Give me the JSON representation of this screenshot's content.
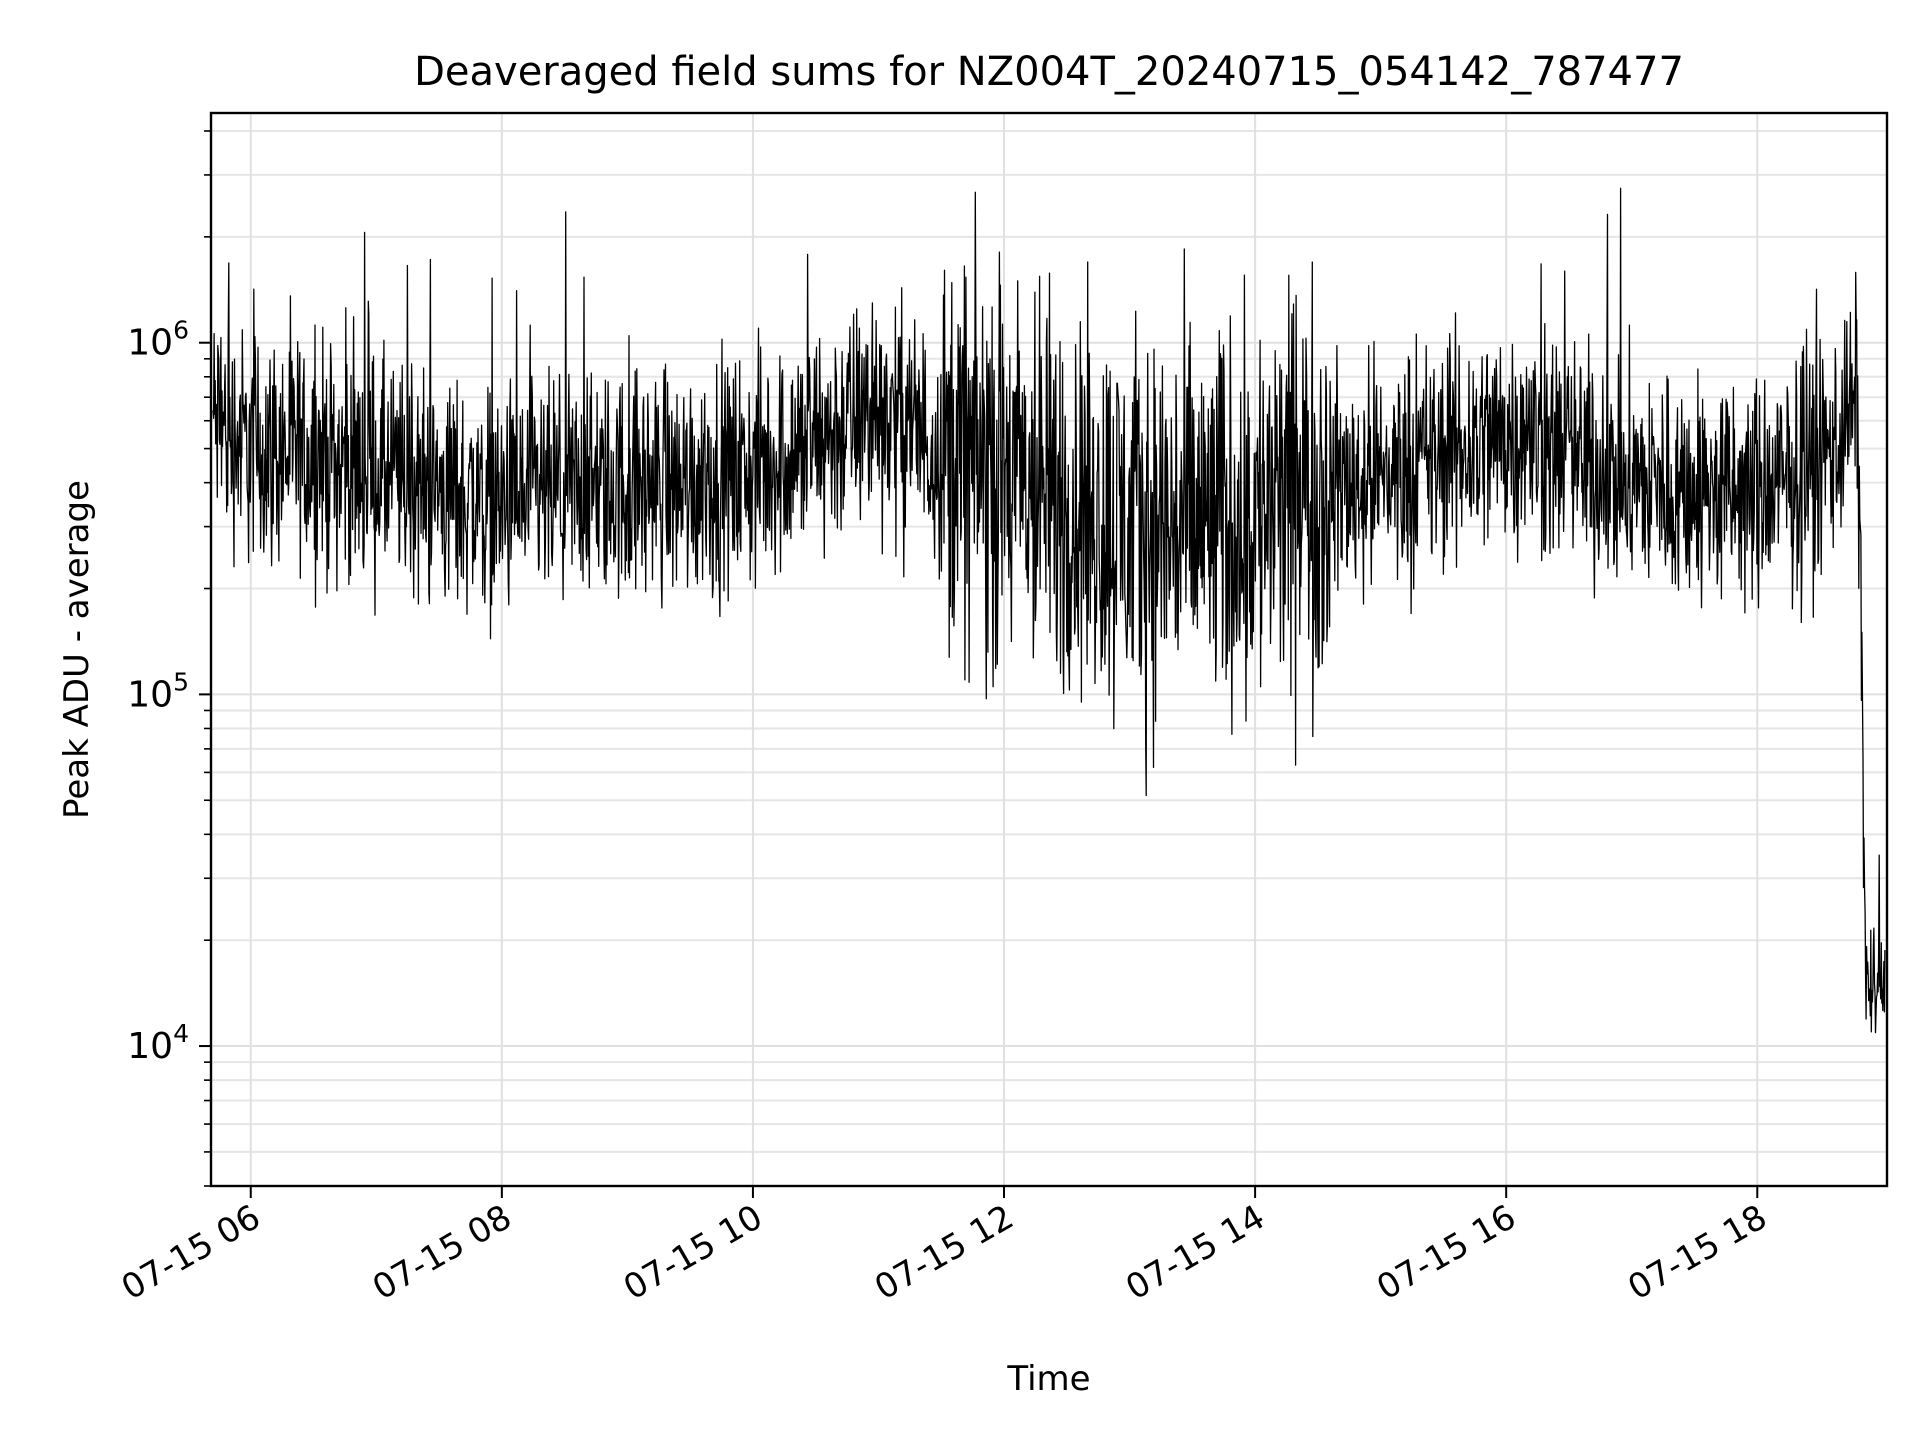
{
  "chart_data": {
    "type": "line",
    "title": "Deaveraged field sums for NZ004T_20240715_054142_787477",
    "xlabel": "Time",
    "ylabel": "Peak ADU - average",
    "yscale": "log",
    "xlim": [
      "2024-07-15T05:41",
      "2024-07-15T19:02"
    ],
    "ylim": [
      4000,
      4500000
    ],
    "x_ticks": [
      {
        "value": "2024-07-15T06:00",
        "label": "07-15 06"
      },
      {
        "value": "2024-07-15T08:00",
        "label": "07-15 08"
      },
      {
        "value": "2024-07-15T10:00",
        "label": "07-15 10"
      },
      {
        "value": "2024-07-15T12:00",
        "label": "07-15 12"
      },
      {
        "value": "2024-07-15T14:00",
        "label": "07-15 14"
      },
      {
        "value": "2024-07-15T16:00",
        "label": "07-15 16"
      },
      {
        "value": "2024-07-15T18:00",
        "label": "07-15 18"
      }
    ],
    "y_ticks": [
      {
        "value": 10000,
        "base": "10",
        "exp": "4"
      },
      {
        "value": 100000,
        "base": "10",
        "exp": "5"
      },
      {
        "value": 1000000,
        "base": "10",
        "exp": "6"
      }
    ],
    "grid": true,
    "line_color": "#000000",
    "series": [
      {
        "values": [
          {
            "x": "2024-07-15T05:42",
            "y": 600000
          },
          {
            "x": "2024-07-15T06:00",
            "y": 500000
          },
          {
            "x": "2024-07-15T06:30",
            "y": 480000
          },
          {
            "x": "2024-07-15T07:00",
            "y": 430000
          },
          {
            "x": "2024-07-15T07:30",
            "y": 380000
          },
          {
            "x": "2024-07-15T08:00",
            "y": 350000
          },
          {
            "x": "2024-07-15T08:30",
            "y": 370000
          },
          {
            "x": "2024-07-15T09:00",
            "y": 390000
          },
          {
            "x": "2024-07-15T09:30",
            "y": 400000
          },
          {
            "x": "2024-07-15T10:00",
            "y": 430000
          },
          {
            "x": "2024-07-15T10:30",
            "y": 520000
          },
          {
            "x": "2024-07-15T11:00",
            "y": 650000
          },
          {
            "x": "2024-07-15T11:30",
            "y": 500000
          },
          {
            "x": "2024-07-15T12:00",
            "y": 420000
          },
          {
            "x": "2024-07-15T12:30",
            "y": 350000
          },
          {
            "x": "2024-07-15T13:00",
            "y": 300000
          },
          {
            "x": "2024-07-15T13:30",
            "y": 300000
          },
          {
            "x": "2024-07-15T14:00",
            "y": 320000
          },
          {
            "x": "2024-07-15T14:30",
            "y": 380000
          },
          {
            "x": "2024-07-15T15:00",
            "y": 420000
          },
          {
            "x": "2024-07-15T15:30",
            "y": 470000
          },
          {
            "x": "2024-07-15T16:00",
            "y": 560000
          },
          {
            "x": "2024-07-15T16:30",
            "y": 480000
          },
          {
            "x": "2024-07-15T17:00",
            "y": 400000
          },
          {
            "x": "2024-07-15T17:30",
            "y": 380000
          },
          {
            "x": "2024-07-15T18:00",
            "y": 360000
          },
          {
            "x": "2024-07-15T18:30",
            "y": 450000
          },
          {
            "x": "2024-07-15T18:48",
            "y": 700000
          },
          {
            "x": "2024-07-15T18:52",
            "y": 15000
          },
          {
            "x": "2024-07-15T19:01",
            "y": 14000
          }
        ]
      }
    ]
  }
}
